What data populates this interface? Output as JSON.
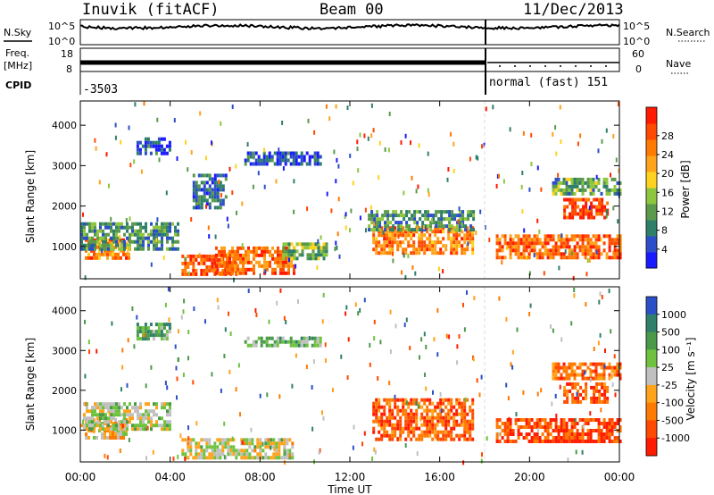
{
  "header": {
    "station": "Inuvik (fitACF)",
    "beam": "Beam 00",
    "date": "11/Dec/2013"
  },
  "strip_labels": {
    "nsky": "N.Sky",
    "nsearch": "N.Search",
    "freq": "Freq.",
    "freq_unit": "[MHz]",
    "nave": "Nave",
    "cpid": "CPID",
    "cpid_left": "-3503",
    "cpid_right": "normal (fast) 151",
    "noise_ticks": [
      "10^5",
      "10^0"
    ],
    "freq_ticks": [
      "18",
      "8"
    ],
    "nave_ticks": [
      "60",
      "0"
    ]
  },
  "chart_data": [
    {
      "type": "heatmap",
      "name": "power-panel",
      "xlabel": "",
      "ylabel": "Slant Range [km]",
      "x_ticks": [
        "00:00",
        "04:00",
        "08:00",
        "12:00",
        "16:00",
        "20:00",
        "00:00"
      ],
      "y_ticks": [
        1000,
        2000,
        3000,
        4000
      ],
      "ylim": [
        200,
        4600
      ],
      "colorbar": {
        "label": "Power [dB]",
        "ticks": [
          "4",
          "8",
          "12",
          "16",
          "20",
          "24",
          "28"
        ],
        "colors": [
          "#1a1aff",
          "#2c4ec8",
          "#2e7f6a",
          "#5a9a4a",
          "#8ec63f",
          "#ffd21f",
          "#ffa31a",
          "#ff7a00",
          "#ff4a00",
          "#ff1a00"
        ]
      },
      "regions": [
        {
          "x": [
            0.2,
            2.2
          ],
          "y": [
            700,
            1200
          ],
          "level": 0.75
        },
        {
          "x": [
            0.0,
            4.3
          ],
          "y": [
            900,
            1600
          ],
          "level": 0.3
        },
        {
          "x": [
            2.5,
            4.0
          ],
          "y": [
            3300,
            3700
          ],
          "level": 0.15
        },
        {
          "x": [
            5.0,
            6.5
          ],
          "y": [
            2000,
            2800
          ],
          "level": 0.2
        },
        {
          "x": [
            4.5,
            7.0
          ],
          "y": [
            300,
            800
          ],
          "level": 0.85
        },
        {
          "x": [
            6.0,
            9.5
          ],
          "y": [
            300,
            1000
          ],
          "level": 0.8
        },
        {
          "x": [
            7.3,
            10.7
          ],
          "y": [
            3050,
            3350
          ],
          "level": 0.15
        },
        {
          "x": [
            9.0,
            11.0
          ],
          "y": [
            700,
            1100
          ],
          "level": 0.4
        },
        {
          "x": [
            13.0,
            17.5
          ],
          "y": [
            800,
            1500
          ],
          "level": 0.75
        },
        {
          "x": [
            12.8,
            17.5
          ],
          "y": [
            1400,
            1900
          ],
          "level": 0.3
        },
        {
          "x": [
            18.5,
            24.0
          ],
          "y": [
            700,
            1300
          ],
          "level": 0.8
        },
        {
          "x": [
            21.5,
            23.5
          ],
          "y": [
            1700,
            2200
          ],
          "level": 0.9
        },
        {
          "x": [
            21.0,
            24.0
          ],
          "y": [
            2300,
            2700
          ],
          "level": 0.35
        }
      ]
    },
    {
      "type": "heatmap",
      "name": "velocity-panel",
      "xlabel": "Time UT",
      "ylabel": "Slant Range [km]",
      "x_ticks": [
        "00:00",
        "04:00",
        "08:00",
        "12:00",
        "16:00",
        "20:00",
        "00:00"
      ],
      "y_ticks": [
        1000,
        2000,
        3000,
        4000
      ],
      "ylim": [
        200,
        4600
      ],
      "colorbar": {
        "label": "Velocity [m s⁻¹]",
        "ticks": [
          "1000",
          "500",
          "100",
          "25",
          "-25",
          "-100",
          "-500",
          "-1000"
        ],
        "colors": [
          "#2a4fc7",
          "#2f7f6a",
          "#4a9a4a",
          "#6ec23f",
          "#c0c0c0",
          "#ffa31a",
          "#ff7a00",
          "#ff4a00",
          "#ff1a00"
        ]
      },
      "regions": [
        {
          "x": [
            0.2,
            2.0
          ],
          "y": [
            800,
            1300
          ],
          "level": 0.6
        },
        {
          "x": [
            0.0,
            4.0
          ],
          "y": [
            1000,
            1700
          ],
          "level": 0.45
        },
        {
          "x": [
            2.5,
            4.0
          ],
          "y": [
            3300,
            3700
          ],
          "level": 0.3
        },
        {
          "x": [
            4.5,
            9.5
          ],
          "y": [
            300,
            800
          ],
          "level": 0.5
        },
        {
          "x": [
            7.3,
            10.7
          ],
          "y": [
            3100,
            3350
          ],
          "level": 0.35
        },
        {
          "x": [
            13.0,
            17.5
          ],
          "y": [
            800,
            1800
          ],
          "level": 0.8
        },
        {
          "x": [
            18.5,
            24.0
          ],
          "y": [
            700,
            1300
          ],
          "level": 0.85
        },
        {
          "x": [
            21.5,
            23.5
          ],
          "y": [
            1700,
            2200
          ],
          "level": 0.8
        },
        {
          "x": [
            21.0,
            24.0
          ],
          "y": [
            2300,
            2700
          ],
          "level": 0.75
        }
      ]
    }
  ]
}
